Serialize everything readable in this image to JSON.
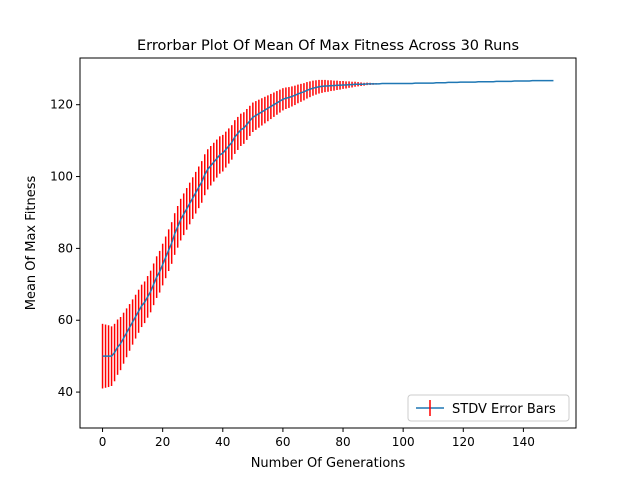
{
  "chart_data": {
    "type": "line",
    "title": "Errorbar Plot Of Mean Of Max Fitness Across 30 Runs",
    "xlabel": "Number Of Generations",
    "ylabel": "Mean Of Max Fitness",
    "xlim": [
      -7.5,
      157.5
    ],
    "ylim": [
      30,
      133
    ],
    "xticks": [
      0,
      20,
      40,
      60,
      80,
      100,
      120,
      140
    ],
    "yticks": [
      40,
      60,
      80,
      100,
      120
    ],
    "xtick_labels": [
      "0",
      "20",
      "40",
      "60",
      "80",
      "100",
      "120",
      "140"
    ],
    "ytick_labels": [
      "40",
      "60",
      "80",
      "100",
      "120"
    ],
    "grid": false,
    "legend_placement": "bottom-right",
    "series": [
      {
        "name": "STDV Error Bars",
        "line_color": "#1f77b4",
        "errorbar_color": "#ff0000",
        "x": [
          0,
          1,
          2,
          3,
          4,
          5,
          6,
          7,
          8,
          9,
          10,
          11,
          12,
          13,
          14,
          15,
          16,
          17,
          18,
          19,
          20,
          21,
          22,
          23,
          24,
          25,
          26,
          27,
          28,
          29,
          30,
          31,
          32,
          33,
          34,
          35,
          36,
          37,
          38,
          39,
          40,
          41,
          42,
          43,
          44,
          45,
          46,
          47,
          48,
          49,
          50,
          51,
          52,
          53,
          54,
          55,
          56,
          57,
          58,
          59,
          60,
          61,
          62,
          63,
          64,
          65,
          66,
          67,
          68,
          69,
          70,
          71,
          72,
          73,
          74,
          75,
          76,
          77,
          78,
          79,
          80,
          81,
          82,
          83,
          84,
          85,
          86,
          87,
          88,
          89,
          90,
          91,
          92,
          93,
          94,
          95,
          96,
          97,
          98,
          99,
          100,
          101,
          102,
          103,
          104,
          105,
          106,
          107,
          108,
          109,
          110,
          111,
          112,
          113,
          114,
          115,
          116,
          117,
          118,
          119,
          120,
          121,
          122,
          123,
          124,
          125,
          126,
          127,
          128,
          129,
          130,
          131,
          132,
          133,
          134,
          135,
          136,
          137,
          138,
          139,
          140,
          141,
          142,
          143,
          144,
          145,
          146,
          147,
          148,
          149,
          150
        ],
        "mean": [
          50.0,
          50.0,
          50.0,
          50.0,
          51.0,
          52.5,
          53.5,
          55.0,
          56.5,
          58.0,
          59.5,
          61.0,
          62.5,
          64.0,
          65.0,
          66.5,
          68.0,
          70.0,
          72.0,
          73.5,
          75.5,
          77.5,
          79.5,
          81.5,
          84.0,
          86.0,
          88.0,
          89.5,
          91.0,
          92.5,
          94.0,
          95.5,
          97.0,
          98.5,
          100.5,
          102.0,
          103.0,
          104.0,
          105.0,
          106.0,
          106.5,
          107.5,
          108.5,
          109.5,
          111.0,
          112.0,
          113.0,
          113.5,
          114.5,
          115.5,
          116.5,
          117.0,
          117.5,
          118.0,
          118.5,
          119.0,
          119.5,
          120.0,
          120.5,
          121.0,
          121.5,
          121.8,
          122.0,
          122.3,
          122.6,
          123.0,
          123.3,
          123.6,
          124.0,
          124.3,
          124.6,
          124.8,
          125.0,
          125.1,
          125.2,
          125.2,
          125.3,
          125.3,
          125.4,
          125.4,
          125.5,
          125.5,
          125.6,
          125.6,
          125.7,
          125.7,
          125.7,
          125.7,
          125.8,
          125.8,
          125.8,
          125.8,
          125.8,
          125.9,
          125.9,
          125.9,
          125.9,
          125.9,
          125.9,
          125.9,
          125.9,
          125.9,
          125.9,
          125.9,
          126.0,
          126.0,
          126.0,
          126.0,
          126.0,
          126.0,
          126.0,
          126.1,
          126.1,
          126.1,
          126.1,
          126.2,
          126.2,
          126.2,
          126.2,
          126.3,
          126.3,
          126.3,
          126.3,
          126.3,
          126.3,
          126.4,
          126.4,
          126.4,
          126.4,
          126.4,
          126.4,
          126.5,
          126.5,
          126.5,
          126.5,
          126.5,
          126.5,
          126.6,
          126.6,
          126.6,
          126.6,
          126.6,
          126.6,
          126.7,
          126.7,
          126.7,
          126.7,
          126.7,
          126.7,
          126.7,
          126.7
        ],
        "stdev": [
          9.0,
          8.8,
          8.6,
          8.3,
          8.0,
          7.7,
          7.4,
          7.1,
          6.8,
          6.5,
          6.3,
          6.1,
          6.0,
          5.9,
          5.8,
          5.8,
          5.8,
          5.8,
          5.8,
          5.8,
          5.8,
          5.8,
          5.8,
          5.8,
          5.8,
          5.8,
          5.8,
          5.8,
          5.8,
          5.8,
          5.8,
          5.8,
          5.8,
          5.8,
          5.7,
          5.6,
          5.5,
          5.4,
          5.3,
          5.2,
          5.1,
          5.0,
          4.9,
          4.8,
          4.7,
          4.6,
          4.5,
          4.4,
          4.3,
          4.2,
          4.1,
          4.0,
          3.9,
          3.8,
          3.7,
          3.6,
          3.5,
          3.4,
          3.3,
          3.2,
          3.1,
          3.0,
          2.9,
          2.8,
          2.7,
          2.6,
          2.5,
          2.4,
          2.3,
          2.2,
          2.1,
          2.0,
          1.9,
          1.8,
          1.7,
          1.6,
          1.5,
          1.4,
          1.3,
          1.2,
          1.1,
          1.0,
          0.9,
          0.8,
          0.7,
          0.6,
          0.5,
          0.4,
          0.35,
          0.3,
          0.25,
          0.2,
          0.15,
          0.1,
          0.05,
          0.0,
          0.0,
          0.0,
          0.0,
          0.0,
          0.0,
          0.0,
          0.0,
          0.0,
          0.0,
          0.0,
          0.0,
          0.0,
          0.0,
          0.0,
          0.0,
          0.0,
          0.0,
          0.0,
          0.0,
          0.0,
          0.0,
          0.0,
          0.0,
          0.0,
          0.0,
          0.0,
          0.0,
          0.0,
          0.0,
          0.0,
          0.0,
          0.0,
          0.0,
          0.0,
          0.0,
          0.0,
          0.0,
          0.0,
          0.0,
          0.0,
          0.0,
          0.0,
          0.0,
          0.0,
          0.0,
          0.0,
          0.0,
          0.0,
          0.0,
          0.0,
          0.0,
          0.0,
          0.0,
          0.0,
          0.0
        ]
      }
    ]
  }
}
